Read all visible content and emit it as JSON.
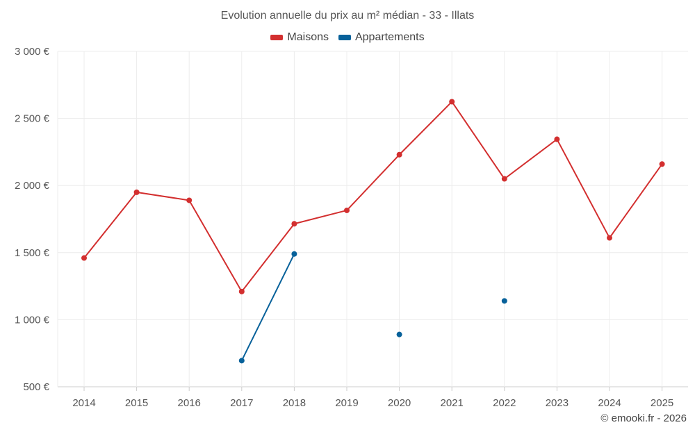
{
  "chart_data": {
    "type": "line",
    "title": "Evolution annuelle du prix au m² médian - 33 - Illats",
    "categories": [
      "2014",
      "2015",
      "2016",
      "2017",
      "2018",
      "2019",
      "2020",
      "2021",
      "2022",
      "2023",
      "2024",
      "2025"
    ],
    "y_ticks": [
      "500 €",
      "1 000 €",
      "1 500 €",
      "2 000 €",
      "2 500 €",
      "3 000 €"
    ],
    "ylim": [
      500,
      3000
    ],
    "grid": true,
    "legend_position": "top-center",
    "series": [
      {
        "name": "Maisons",
        "color": "#d32f2f",
        "values": [
          1460,
          1950,
          1890,
          1210,
          1715,
          1815,
          2230,
          2625,
          2050,
          2345,
          1610,
          2160
        ]
      },
      {
        "name": "Appartements",
        "color": "#07619a",
        "values": [
          null,
          null,
          null,
          695,
          1490,
          null,
          890,
          null,
          1140,
          null,
          null,
          null
        ]
      }
    ]
  },
  "credit": "© emooki.fr - 2026"
}
